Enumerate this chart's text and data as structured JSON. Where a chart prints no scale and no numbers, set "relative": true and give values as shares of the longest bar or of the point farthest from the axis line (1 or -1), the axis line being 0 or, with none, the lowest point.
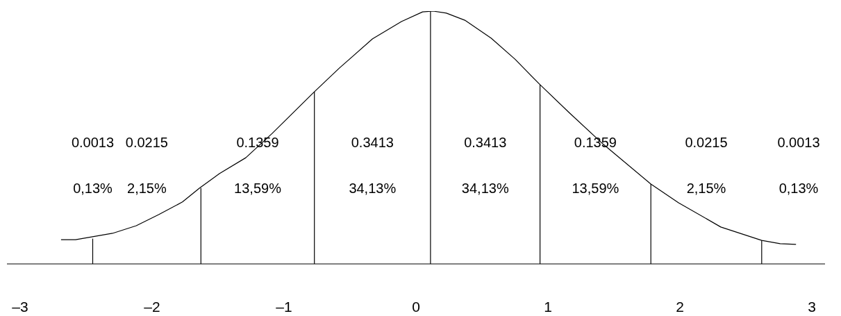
{
  "chart_data": {
    "type": "line",
    "relative": true,
    "marker": "none",
    "xlim": [
      -3.1,
      3.1
    ],
    "xticks": [
      {
        "value": -3,
        "label": "–3"
      },
      {
        "value": -2,
        "label": "–2"
      },
      {
        "value": -1,
        "label": "–1"
      },
      0,
      1,
      2,
      3
    ],
    "series": [
      {
        "color": "#000000",
        "x": [
          -2.69,
          -2.58,
          -2.3,
          -2.12,
          -1.95,
          -1.77,
          -1.64,
          -1.49,
          -1.29,
          -1.09,
          -0.77,
          -0.58,
          -0.33,
          -0.11,
          0.05,
          0.13,
          0.23,
          0.37,
          0.57,
          0.75,
          0.94,
          1.16,
          1.42,
          1.78,
          1.99,
          2.31,
          2.62,
          2.76,
          2.88
        ],
        "values": [
          0.096,
          0.096,
          0.121,
          0.151,
          0.195,
          0.245,
          0.3,
          0.357,
          0.42,
          0.516,
          0.681,
          0.775,
          0.89,
          0.959,
          0.997,
          1,
          0.992,
          0.964,
          0.893,
          0.81,
          0.709,
          0.599,
          0.473,
          0.316,
          0.242,
          0.146,
          0.093,
          0.08,
          0.077
        ]
      },
      {
        "color": "#000000",
        "x": [
          -2.45,
          -2.45
        ],
        "values": [
          0,
          0.1
        ]
      },
      {
        "color": "#000000",
        "x": [
          -1.63,
          -1.63
        ],
        "values": [
          0,
          0.3
        ]
      },
      {
        "color": "#000000",
        "x": [
          -0.77,
          -0.77
        ],
        "values": [
          0,
          0.681
        ]
      },
      {
        "color": "#000000",
        "x": [
          0.11,
          0.11
        ],
        "values": [
          0,
          1
        ]
      },
      {
        "color": "#000000",
        "x": [
          0.94,
          0.94
        ],
        "values": [
          0,
          0.709
        ]
      },
      {
        "color": "#000000",
        "x": [
          1.78,
          1.78
        ],
        "values": [
          0,
          0.316
        ]
      },
      {
        "color": "#000000",
        "x": [
          2.62,
          2.62
        ],
        "values": [
          0,
          0.093
        ]
      }
    ],
    "annotations": [
      "0.0013",
      "0.0215",
      "0.1359",
      "0.3413",
      "0.3413",
      "0.1359",
      "0.0215",
      "0.0013",
      "0,13%",
      "2,15%",
      "13,59%",
      "34,13%",
      "34,13%",
      "13,59%",
      "2,15%",
      "0,13%"
    ]
  }
}
